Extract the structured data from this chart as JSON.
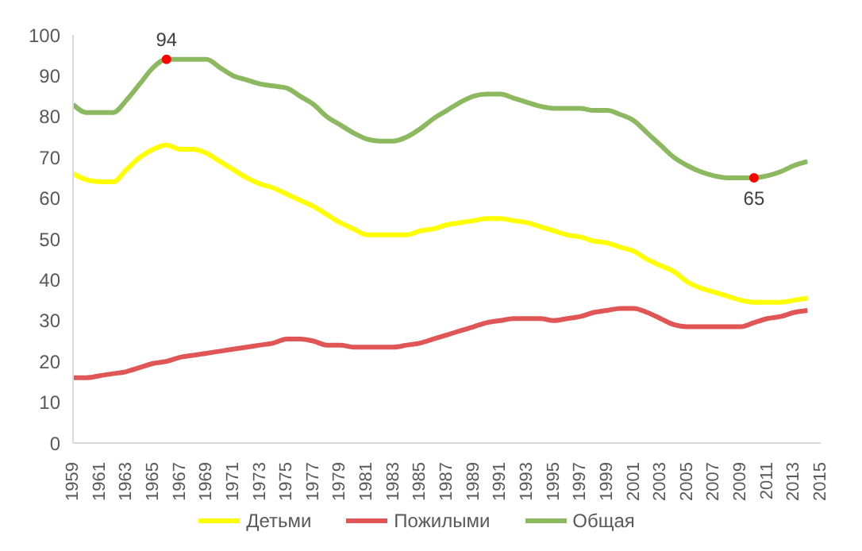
{
  "chart_data": {
    "type": "line",
    "x": [
      1959,
      1960,
      1961,
      1962,
      1963,
      1964,
      1965,
      1966,
      1967,
      1968,
      1969,
      1970,
      1971,
      1972,
      1973,
      1974,
      1975,
      1976,
      1977,
      1978,
      1979,
      1980,
      1981,
      1982,
      1983,
      1984,
      1985,
      1986,
      1987,
      1988,
      1989,
      1990,
      1991,
      1992,
      1993,
      1994,
      1995,
      1996,
      1997,
      1998,
      1999,
      2000,
      2001,
      2002,
      2003,
      2004,
      2005,
      2006,
      2007,
      2008,
      2009,
      2010,
      2011,
      2012,
      2013,
      2014
    ],
    "series": [
      {
        "name": "Детьми",
        "color": "#ffff00",
        "values": [
          66,
          64.5,
          64,
          64,
          67,
          70,
          72,
          73,
          72,
          72,
          71,
          69,
          67,
          65,
          63.5,
          62.5,
          61,
          59.5,
          58,
          56,
          54,
          52.5,
          51,
          51,
          51,
          51,
          52,
          52.5,
          53.5,
          54,
          54.5,
          55,
          55,
          54.5,
          54,
          53,
          52,
          51,
          50.5,
          49.5,
          49,
          48,
          47,
          45,
          43.5,
          42,
          39.5,
          38,
          37,
          36,
          35,
          34.5,
          34.5,
          34.5,
          35,
          35.5
        ]
      },
      {
        "name": "Пожилыми",
        "color": "#e05555",
        "values": [
          16,
          16,
          16.5,
          17,
          17.5,
          18.5,
          19.5,
          20,
          21,
          21.5,
          22,
          22.5,
          23,
          23.5,
          24,
          24.5,
          25.5,
          25.5,
          25,
          24,
          24,
          23.5,
          23.5,
          23.5,
          23.5,
          24,
          24.5,
          25.5,
          26.5,
          27.5,
          28.5,
          29.5,
          30,
          30.5,
          30.5,
          30.5,
          30,
          30.5,
          31,
          32,
          32.5,
          33,
          33,
          32,
          30.5,
          29,
          28.5,
          28.5,
          28.5,
          28.5,
          28.5,
          29.5,
          30.5,
          31,
          32,
          32.5
        ]
      },
      {
        "name": "Общая",
        "color": "#8cb860",
        "values": [
          83,
          81,
          81,
          81,
          84,
          88,
          92,
          94,
          94,
          94,
          94,
          92,
          90,
          89,
          88,
          87.5,
          87,
          85,
          83,
          80,
          78,
          76,
          74.5,
          74,
          74,
          75,
          77,
          79.5,
          81.5,
          83.5,
          85,
          85.5,
          85.5,
          84.5,
          83.5,
          82.5,
          82,
          82,
          82,
          81.5,
          81.5,
          80.5,
          79,
          76,
          73,
          70,
          68,
          66.5,
          65.5,
          65,
          65,
          65,
          65.5,
          66.5,
          68,
          69
        ]
      }
    ],
    "xlim": [
      1959,
      2015
    ],
    "xticks": [
      1959,
      1961,
      1963,
      1965,
      1967,
      1969,
      1971,
      1973,
      1975,
      1977,
      1979,
      1981,
      1983,
      1985,
      1987,
      1989,
      1991,
      1993,
      1995,
      1997,
      1999,
      2001,
      2003,
      2005,
      2007,
      2009,
      2011,
      2013,
      2015
    ],
    "ylim": [
      0,
      100
    ],
    "yticks": [
      0,
      10,
      20,
      30,
      40,
      50,
      60,
      70,
      80,
      90,
      100
    ],
    "annotations": [
      {
        "text": "94",
        "x": 1966,
        "y": 94
      },
      {
        "text": "65",
        "x": 2010,
        "y": 65
      }
    ],
    "legend": "bottom",
    "grid": false,
    "marker": "none",
    "line_style": "solid"
  }
}
